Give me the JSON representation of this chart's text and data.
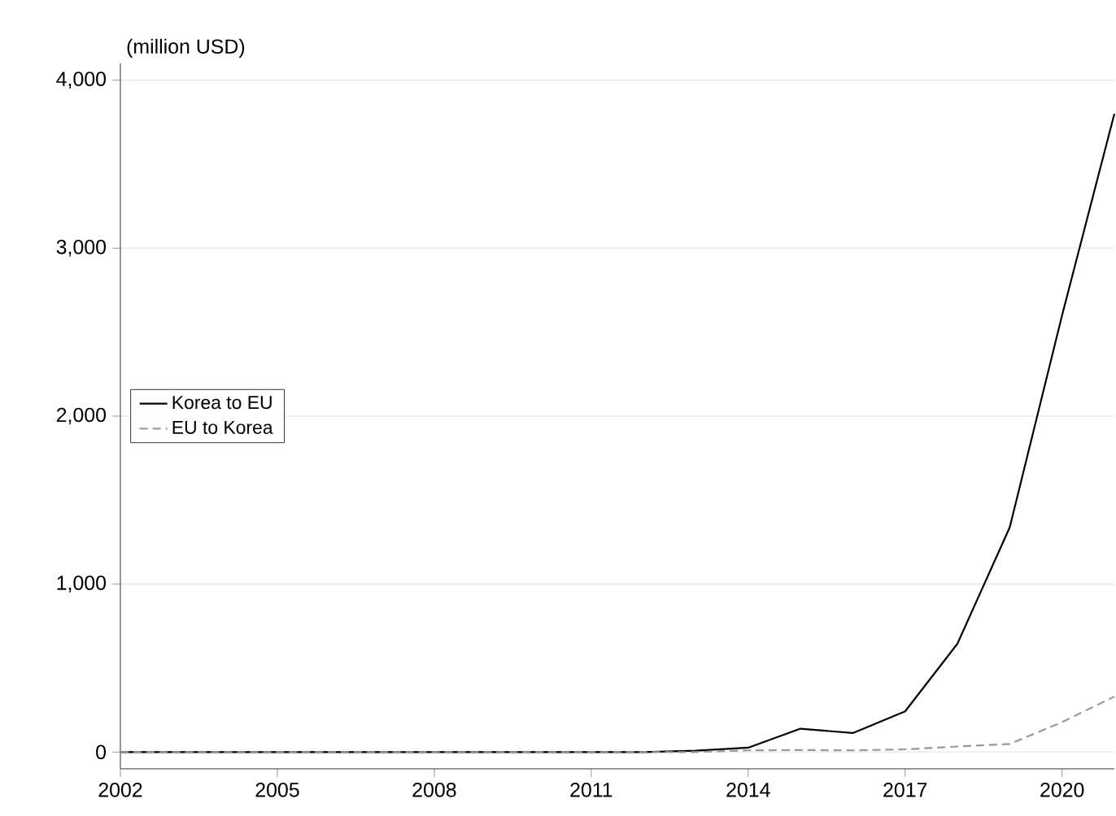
{
  "chart_data": {
    "type": "line",
    "ylabel": "(million USD)",
    "x": [
      2002,
      2003,
      2004,
      2005,
      2006,
      2007,
      2008,
      2009,
      2010,
      2011,
      2012,
      2013,
      2014,
      2015,
      2016,
      2017,
      2018,
      2019,
      2020,
      2021
    ],
    "series": [
      {
        "name": "Korea to EU",
        "color": "#000000",
        "line_style": "solid",
        "values": [
          0,
          0,
          0,
          0,
          0,
          0,
          0,
          0,
          0,
          0,
          0,
          8,
          26,
          139,
          113,
          242,
          645,
          1338,
          2600,
          3800
        ]
      },
      {
        "name": "EU to Korea",
        "color": "#999999",
        "line_style": "dashed",
        "values": [
          0,
          0,
          0,
          0,
          0,
          0,
          0,
          0,
          0,
          0,
          0,
          0,
          10,
          12,
          10,
          16,
          33,
          48,
          178,
          330
        ]
      }
    ],
    "xlim": [
      2002,
      2021
    ],
    "ylim": [
      -100,
      4100
    ],
    "xticks": [
      2002,
      2005,
      2008,
      2011,
      2014,
      2017,
      2020
    ],
    "yticks": [
      {
        "value": 0,
        "label": "0"
      },
      {
        "value": 1000,
        "label": "1,000"
      },
      {
        "value": 2000,
        "label": "2,000"
      },
      {
        "value": 3000,
        "label": "3,000"
      },
      {
        "value": 4000,
        "label": "4,000"
      }
    ],
    "grid": "y",
    "legend": "left",
    "marker": "none"
  }
}
